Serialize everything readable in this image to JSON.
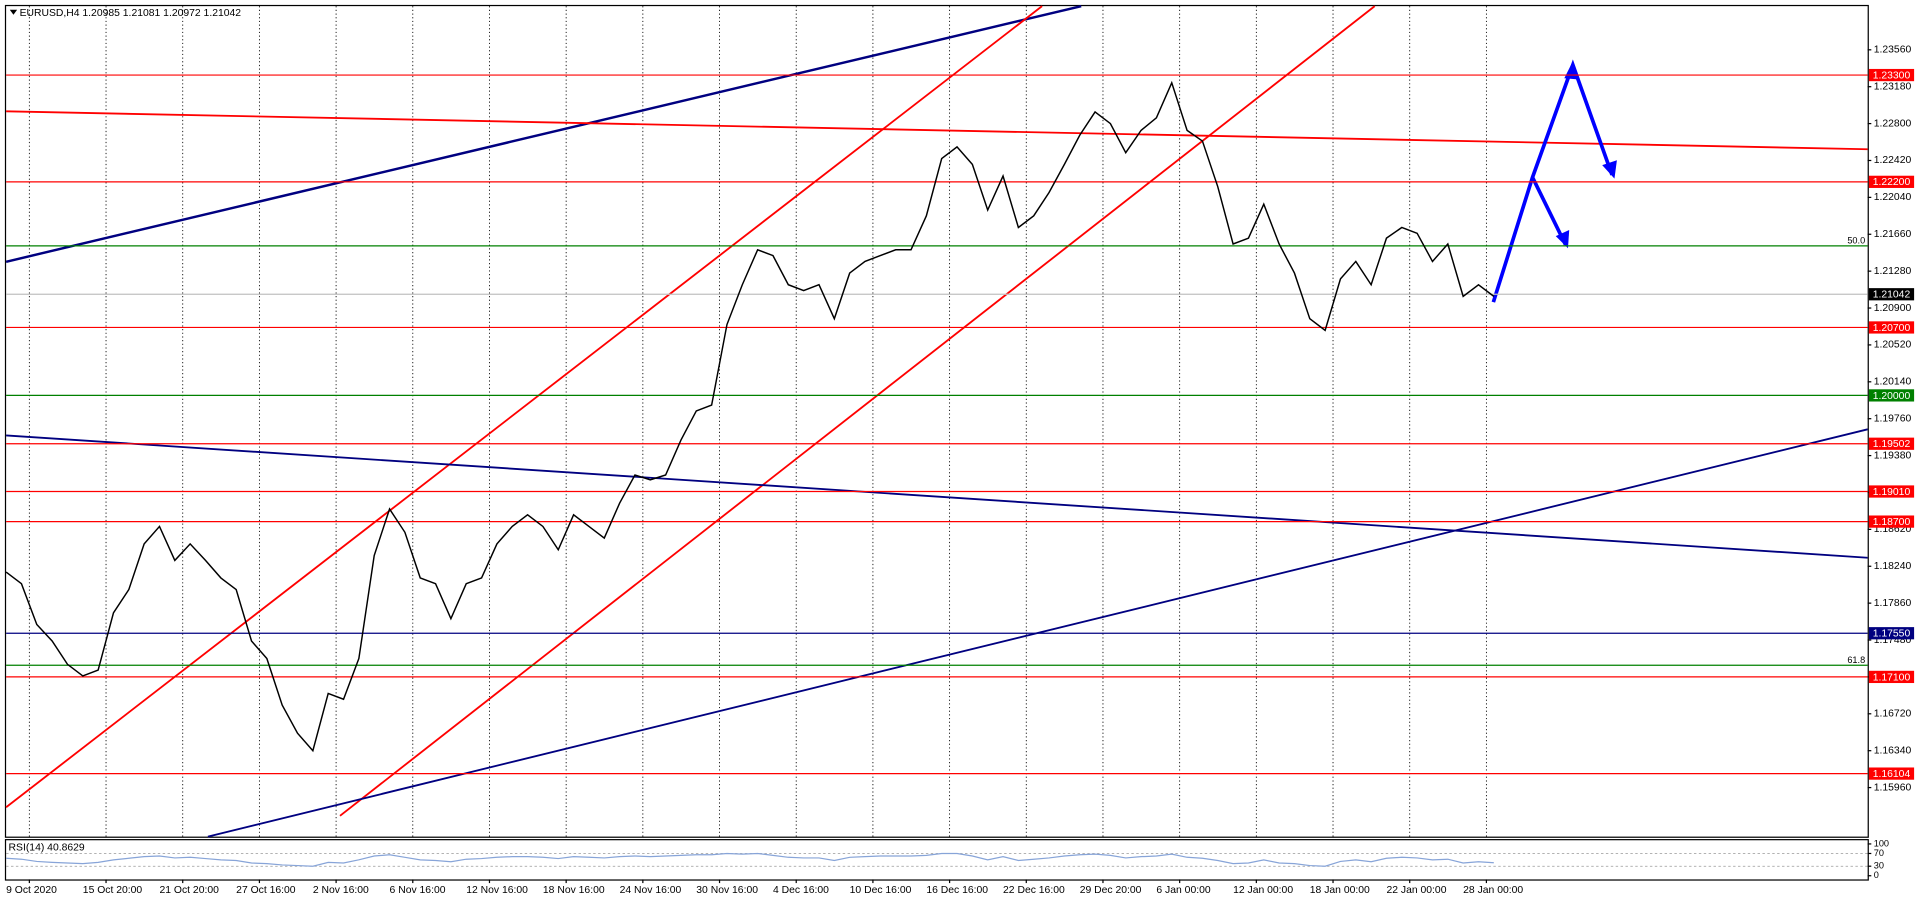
{
  "chart_data": {
    "type": "line",
    "title": "EURUSD,H4  1.20985 1.21081 1.20972 1.21042",
    "series": [
      {
        "name": "EURUSD",
        "color": "#000000",
        "values": [
          1.1818,
          1.1806,
          1.1764,
          1.1747,
          1.1723,
          1.1711,
          1.1717,
          1.1776,
          1.18,
          1.1847,
          1.1865,
          1.183,
          1.1847,
          1.183,
          1.1812,
          1.18,
          1.1747,
          1.1729,
          1.1681,
          1.1652,
          1.1634,
          1.1693,
          1.1687,
          1.1729,
          1.1835,
          1.1883,
          1.1859,
          1.1812,
          1.1806,
          1.177,
          1.1806,
          1.1812,
          1.1847,
          1.1865,
          1.1877,
          1.1865,
          1.1841,
          1.1877,
          1.1865,
          1.1853,
          1.1889,
          1.1918,
          1.1913,
          1.1918,
          1.1954,
          1.1984,
          1.199,
          1.2073,
          1.2114,
          1.215,
          1.2144,
          1.2114,
          1.2108,
          1.2114,
          1.2079,
          1.2126,
          1.2138,
          1.2144,
          1.215,
          1.215,
          1.2185,
          1.2244,
          1.2256,
          1.2238,
          1.2191,
          1.2226,
          1.2173,
          1.2185,
          1.2209,
          1.2238,
          1.2268,
          1.2292,
          1.228,
          1.225,
          1.2273,
          1.2286,
          1.2322,
          1.2273,
          1.2262,
          1.2215,
          1.2156,
          1.2162,
          1.2197,
          1.2156,
          1.2126,
          1.2079,
          1.2067,
          1.212,
          1.2138,
          1.2114,
          1.2162,
          1.2173,
          1.2167,
          1.2138,
          1.2156,
          1.2102,
          1.2114,
          1.2102
        ]
      }
    ],
    "xticks": [
      {
        "value": 0,
        "label": "9 Oct 2020"
      },
      {
        "value": 5,
        "label": "15 Oct 20:00"
      },
      {
        "value": 10,
        "label": "21 Oct 20:00"
      },
      {
        "value": 15,
        "label": "27 Oct 16:00"
      },
      {
        "value": 20,
        "label": "2 Nov 16:00"
      },
      {
        "value": 25,
        "label": "6 Nov 16:00"
      },
      {
        "value": 30,
        "label": "12 Nov 16:00"
      },
      {
        "value": 35,
        "label": "18 Nov 16:00"
      },
      {
        "value": 40,
        "label": "24 Nov 16:00"
      },
      {
        "value": 45,
        "label": "30 Nov 16:00"
      },
      {
        "value": 50,
        "label": "4 Dec 16:00"
      },
      {
        "value": 55,
        "label": "10 Dec 16:00"
      },
      {
        "value": 60,
        "label": "16 Dec 16:00"
      },
      {
        "value": 65,
        "label": "22 Dec 16:00"
      },
      {
        "value": 70,
        "label": "29 Dec 20:00"
      },
      {
        "value": 75,
        "label": "6 Jan 00:00"
      },
      {
        "value": 80,
        "label": "12 Jan 00:00"
      },
      {
        "value": 85,
        "label": "18 Jan 00:00"
      },
      {
        "value": 90,
        "label": "22 Jan 00:00"
      },
      {
        "value": 95,
        "label": "28 Jan 00:00"
      }
    ],
    "ylim": [
      1.15455,
      1.2401
    ],
    "yticks": [
      {
        "value": 1.1596,
        "label": "1.15960"
      },
      {
        "value": 1.1634,
        "label": "1.16340"
      },
      {
        "value": 1.1672,
        "label": "1.16720"
      },
      {
        "value": 1.171,
        "label": "1.17100"
      },
      {
        "value": 1.1748,
        "label": "1.17480"
      },
      {
        "value": 1.1786,
        "label": "1.17860"
      },
      {
        "value": 1.1824,
        "label": "1.18240"
      },
      {
        "value": 1.1862,
        "label": "1.18620"
      },
      {
        "value": 1.19,
        "label": "1.19000"
      },
      {
        "value": 1.1938,
        "label": "1.19380"
      },
      {
        "value": 1.1976,
        "label": "1.19760"
      },
      {
        "value": 1.2014,
        "label": "1.20140"
      },
      {
        "value": 1.2052,
        "label": "1.20520"
      },
      {
        "value": 1.209,
        "label": "1.20900"
      },
      {
        "value": 1.2128,
        "label": "1.21280"
      },
      {
        "value": 1.2166,
        "label": "1.21660"
      },
      {
        "value": 1.2204,
        "label": "1.22040"
      },
      {
        "value": 1.2242,
        "label": "1.22420"
      },
      {
        "value": 1.228,
        "label": "1.22800"
      },
      {
        "value": 1.2318,
        "label": "1.23180"
      },
      {
        "value": 1.2356,
        "label": "1.23560"
      }
    ],
    "grid": "x",
    "levels": [
      {
        "value": 1.233,
        "label": "1.23300",
        "color": "#ff0000"
      },
      {
        "value": 1.222,
        "label": "1.22200",
        "color": "#ff0000"
      },
      {
        "value": 1.207,
        "label": "1.20700",
        "color": "#ff0000"
      },
      {
        "value": 1.2,
        "label": "1.20000",
        "color": "#008000"
      },
      {
        "value": 1.19502,
        "label": "1.19502",
        "color": "#ff0000"
      },
      {
        "value": 1.1901,
        "label": "1.19010",
        "color": "#ff0000"
      },
      {
        "value": 1.187,
        "label": "1.18700",
        "color": "#ff0000"
      },
      {
        "value": 1.1755,
        "label": "1.17550",
        "color": "#000080"
      },
      {
        "value": 1.171,
        "label": "1.17100",
        "color": "#ff0000"
      },
      {
        "value": 1.16104,
        "label": "1.16104",
        "color": "#ff0000"
      }
    ],
    "last": {
      "value": 1.21042,
      "label": "1.21042",
      "color": "#000000"
    },
    "fib": [
      {
        "value": 1.2154,
        "label": "50.0",
        "color": "#008000"
      },
      {
        "value": 1.1722,
        "label": "61.8",
        "color": "#008000"
      }
    ],
    "rsi": {
      "label": "RSI(14) 40.8629",
      "color": "#87a4d8",
      "values": [
        55,
        52,
        45,
        42,
        40,
        38,
        42,
        50,
        55,
        60,
        62,
        56,
        58,
        54,
        50,
        48,
        40,
        38,
        34,
        32,
        30,
        42,
        40,
        50,
        62,
        66,
        58,
        50,
        48,
        44,
        52,
        54,
        58,
        60,
        60,
        58,
        54,
        60,
        58,
        56,
        60,
        62,
        60,
        62,
        64,
        66,
        66,
        70,
        68,
        70,
        64,
        58,
        56,
        56,
        48,
        58,
        60,
        62,
        62,
        62,
        64,
        70,
        70,
        62,
        50,
        60,
        48,
        52,
        56,
        62,
        66,
        68,
        64,
        56,
        60,
        62,
        68,
        58,
        55,
        48,
        38,
        40,
        50,
        40,
        38,
        32,
        30,
        45,
        50,
        44,
        55,
        58,
        56,
        50,
        52,
        40,
        44,
        41
      ],
      "ylim": [
        0,
        100
      ],
      "yticks": [
        100,
        70,
        30,
        0
      ]
    }
  }
}
